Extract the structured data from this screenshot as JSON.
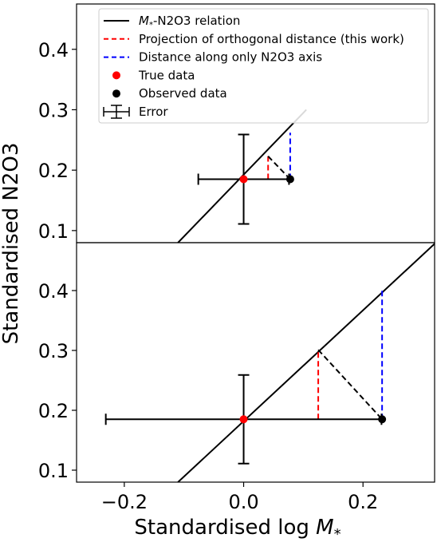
{
  "chart_data": [
    {
      "type": "scatter",
      "panel": "top",
      "xlim": [
        -0.28,
        0.32
      ],
      "ylim": [
        0.08,
        0.475
      ],
      "relation_line": {
        "x": [
          -0.11,
          0.105
        ],
        "y": [
          0.08,
          0.3
        ]
      },
      "true_point": {
        "x": 0.0,
        "y": 0.185,
        "xerr": [
          0.076,
          0.076
        ],
        "yerr": [
          0.074,
          0.074
        ]
      },
      "observed_point": {
        "x": 0.078,
        "y": 0.185
      },
      "orthogonal_projection": {
        "x": 0.041,
        "y": 0.223
      },
      "axis_projection": {
        "x": 0.078,
        "y": 0.262
      },
      "legend": {
        "position": "top-right",
        "entries": [
          {
            "key": "relation",
            "label": "-N2O3 relation",
            "label_math": "M",
            "label_sub": "*",
            "color": "#000000",
            "style": "solid-line"
          },
          {
            "key": "orthogonal",
            "label": "Projection of orthogonal distance (this work)",
            "color": "#ff0000",
            "style": "dashed-line"
          },
          {
            "key": "axis",
            "label": "Distance along only N2O3 axis",
            "color": "#0000ff",
            "style": "dashed-line"
          },
          {
            "key": "true",
            "label": "True data",
            "color": "#ff0000",
            "style": "marker"
          },
          {
            "key": "observed",
            "label": "Observed data",
            "color": "#000000",
            "style": "marker"
          },
          {
            "key": "error",
            "label": "Error",
            "color": "#000000",
            "style": "errorbar"
          }
        ]
      }
    },
    {
      "type": "scatter",
      "panel": "bottom",
      "xlim": [
        -0.28,
        0.32
      ],
      "ylim": [
        0.08,
        0.48
      ],
      "xticks": [
        -0.2,
        0.0,
        0.2
      ],
      "xtick_labels": [
        "−0.2",
        "0.0",
        "0.2"
      ],
      "relation_line": {
        "x": [
          -0.11,
          0.322
        ],
        "y": [
          0.08,
          0.48
        ]
      },
      "true_point": {
        "x": 0.0,
        "y": 0.185,
        "xerr": [
          0.231,
          0.231
        ],
        "yerr": [
          0.074,
          0.074
        ]
      },
      "observed_point": {
        "x": 0.232,
        "y": 0.185
      },
      "orthogonal_projection": {
        "x": 0.125,
        "y": 0.301
      },
      "axis_projection": {
        "x": 0.232,
        "y": 0.4
      }
    }
  ],
  "axes": {
    "ylabel": "Standardised N2O3",
    "xlabel_prefix": "Standardised log ",
    "xlabel_math": "M",
    "xlabel_sub": "*",
    "yticks": [
      0.1,
      0.2,
      0.3,
      0.4
    ],
    "ytick_labels": [
      "0.1",
      "0.2",
      "0.3",
      "0.4"
    ]
  },
  "colors": {
    "relation": "#000000",
    "orthogonal": "#ff0000",
    "axis": "#0000ff",
    "true": "#ff0000",
    "observed": "#000000",
    "connector": "#000000"
  }
}
